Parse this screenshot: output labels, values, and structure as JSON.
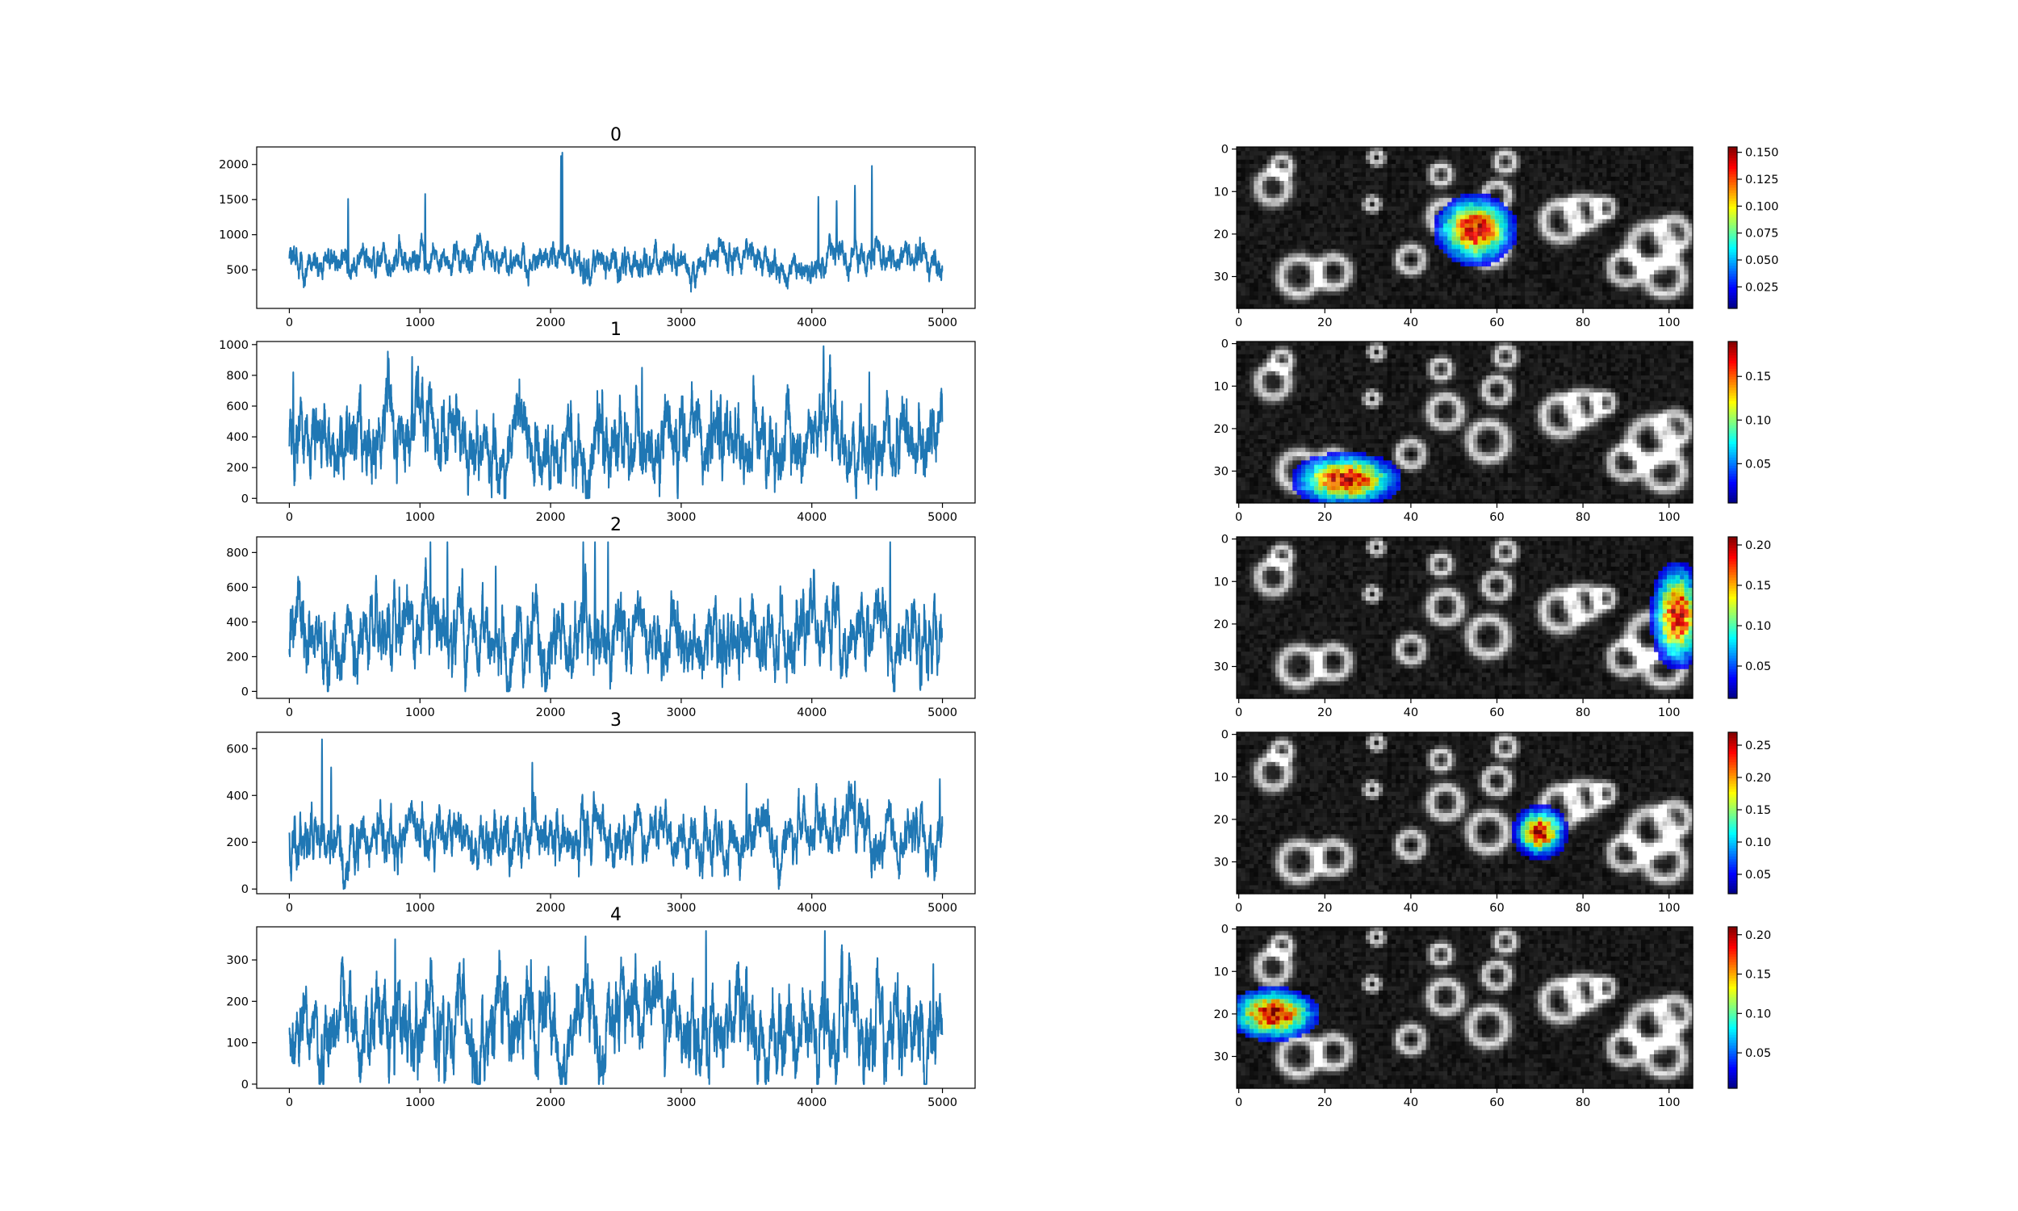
{
  "chart_data": [
    {
      "type": "line",
      "title": "0",
      "xlim": [
        -250,
        5250
      ],
      "ylim": [
        -50,
        2250
      ],
      "xticks": [
        0,
        1000,
        2000,
        3000,
        4000,
        5000
      ],
      "yticks": [
        500,
        1000,
        1500,
        2000
      ],
      "color": "#1f77b4",
      "n_points": 5000,
      "series_profile": {
        "baseline": 630,
        "noise": 130,
        "min": 150,
        "max": 2170
      },
      "peaks": [
        [
          450,
          1510
        ],
        [
          1040,
          1580
        ],
        [
          2080,
          2120
        ],
        [
          2090,
          2170
        ],
        [
          4050,
          1540
        ],
        [
          4190,
          1480
        ],
        [
          4330,
          1700
        ],
        [
          4460,
          1980
        ]
      ]
    },
    {
      "type": "line",
      "title": "1",
      "xlim": [
        -250,
        5250
      ],
      "ylim": [
        -30,
        1020
      ],
      "xticks": [
        0,
        1000,
        2000,
        3000,
        4000,
        5000
      ],
      "yticks": [
        0,
        200,
        400,
        600,
        800,
        1000
      ],
      "color": "#1f77b4",
      "n_points": 5000,
      "series_profile": {
        "baseline": 380,
        "noise": 150,
        "min": 0,
        "max": 990
      },
      "peaks": [
        [
          30,
          820
        ],
        [
          760,
          910
        ],
        [
          940,
          920
        ],
        [
          2700,
          850
        ],
        [
          3230,
          700
        ],
        [
          4090,
          990
        ],
        [
          4440,
          820
        ]
      ]
    },
    {
      "type": "line",
      "title": "2",
      "xlim": [
        -250,
        5250
      ],
      "ylim": [
        -40,
        890
      ],
      "xticks": [
        0,
        1000,
        2000,
        3000,
        4000,
        5000
      ],
      "yticks": [
        0,
        200,
        400,
        600,
        800
      ],
      "color": "#1f77b4",
      "n_points": 5000,
      "series_profile": {
        "baseline": 300,
        "noise": 130,
        "min": 0,
        "max": 860
      },
      "peaks": [
        [
          1080,
          860
        ],
        [
          1210,
          860
        ],
        [
          1580,
          720
        ],
        [
          2250,
          860
        ],
        [
          2340,
          860
        ],
        [
          2440,
          860
        ],
        [
          4600,
          860
        ]
      ]
    },
    {
      "type": "line",
      "title": "3",
      "xlim": [
        -250,
        5250
      ],
      "ylim": [
        -20,
        670
      ],
      "xticks": [
        0,
        1000,
        2000,
        3000,
        4000,
        5000
      ],
      "yticks": [
        0,
        200,
        400,
        600
      ],
      "color": "#1f77b4",
      "n_points": 5000,
      "series_profile": {
        "baseline": 220,
        "noise": 70,
        "min": 0,
        "max": 640
      },
      "peaks": [
        [
          250,
          640
        ],
        [
          320,
          520
        ],
        [
          1860,
          540
        ],
        [
          3500,
          450
        ],
        [
          4330,
          460
        ],
        [
          4980,
          470
        ]
      ]
    },
    {
      "type": "line",
      "title": "4",
      "xlim": [
        -250,
        5250
      ],
      "ylim": [
        -10,
        380
      ],
      "xticks": [
        0,
        1000,
        2000,
        3000,
        4000,
        5000
      ],
      "yticks": [
        0,
        100,
        200,
        300
      ],
      "color": "#1f77b4",
      "n_points": 5000,
      "series_profile": {
        "baseline": 130,
        "noise": 65,
        "min": 0,
        "max": 370
      },
      "peaks": [
        [
          810,
          350
        ],
        [
          1850,
          300
        ],
        [
          3190,
          370
        ],
        [
          4100,
          370
        ],
        [
          4930,
          290
        ]
      ]
    },
    {
      "type": "heatmap",
      "title": "",
      "xlim": [
        -0.5,
        105.5
      ],
      "ylim": [
        37.5,
        -0.5
      ],
      "xticks": [
        0,
        20,
        40,
        60,
        80,
        100
      ],
      "yticks": [
        0,
        10,
        20,
        30
      ],
      "colorbar": {
        "vmin": 0.005,
        "vmax": 0.155,
        "ticks": [
          "0.025",
          "0.050",
          "0.075",
          "0.100",
          "0.125",
          "0.150"
        ]
      },
      "overlay": {
        "cx": 55,
        "cy": 19,
        "rx": 9,
        "ry": 8,
        "peak": 0.155
      },
      "background": "grayscale cell image"
    },
    {
      "type": "heatmap",
      "title": "",
      "xlim": [
        -0.5,
        105.5
      ],
      "ylim": [
        37.5,
        -0.5
      ],
      "xticks": [
        0,
        20,
        40,
        60,
        80,
        100
      ],
      "yticks": [
        0,
        10,
        20,
        30
      ],
      "colorbar": {
        "vmin": 0.005,
        "vmax": 0.19,
        "ticks": [
          "0.05",
          "0.10",
          "0.15"
        ]
      },
      "overlay": {
        "cx": 25,
        "cy": 32,
        "rx": 12,
        "ry": 6,
        "peak": 0.19
      },
      "background": "grayscale cell image"
    },
    {
      "type": "heatmap",
      "title": "",
      "xlim": [
        -0.5,
        105.5
      ],
      "ylim": [
        37.5,
        -0.5
      ],
      "xticks": [
        0,
        20,
        40,
        60,
        80,
        100
      ],
      "yticks": [
        0,
        10,
        20,
        30
      ],
      "colorbar": {
        "vmin": 0.01,
        "vmax": 0.21,
        "ticks": [
          "0.05",
          "0.10",
          "0.15",
          "0.20"
        ]
      },
      "overlay": {
        "cx": 102,
        "cy": 18,
        "rx": 6,
        "ry": 12,
        "peak": 0.21
      },
      "background": "grayscale cell image"
    },
    {
      "type": "heatmap",
      "title": "",
      "xlim": [
        -0.5,
        105.5
      ],
      "ylim": [
        37.5,
        -0.5
      ],
      "xticks": [
        0,
        20,
        40,
        60,
        80,
        100
      ],
      "yticks": [
        0,
        10,
        20,
        30
      ],
      "colorbar": {
        "vmin": 0.02,
        "vmax": 0.27,
        "ticks": [
          "0.05",
          "0.10",
          "0.15",
          "0.20",
          "0.25"
        ]
      },
      "overlay": {
        "cx": 70,
        "cy": 23,
        "rx": 6,
        "ry": 6,
        "peak": 0.27
      },
      "background": "grayscale cell image"
    },
    {
      "type": "heatmap",
      "title": "",
      "xlim": [
        -0.5,
        105.5
      ],
      "ylim": [
        37.5,
        -0.5
      ],
      "xticks": [
        0,
        20,
        40,
        60,
        80,
        100
      ],
      "yticks": [
        0,
        10,
        20,
        30
      ],
      "colorbar": {
        "vmin": 0.005,
        "vmax": 0.21,
        "ticks": [
          "0.05",
          "0.10",
          "0.15",
          "0.20"
        ]
      },
      "overlay": {
        "cx": 8,
        "cy": 20,
        "rx": 10,
        "ry": 6,
        "peak": 0.21
      },
      "background": "grayscale cell image"
    }
  ]
}
